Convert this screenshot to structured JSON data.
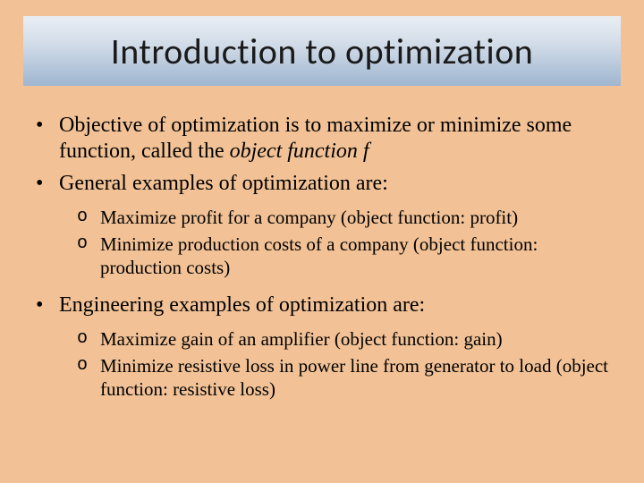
{
  "colors": {
    "background": "#f2c296",
    "title_gradient_top": "#e9eef4",
    "title_gradient_mid": "#d2dce8",
    "title_gradient_bottom": "#9fb6d0",
    "title_text": "#1a1a1a",
    "body_text": "#000000"
  },
  "typography": {
    "title_font": "Calibri",
    "title_size_pt": 30,
    "body_font": "Times New Roman",
    "bullet_lvl1_size_pt": 18,
    "bullet_lvl2_size_pt": 16
  },
  "title": "Introduction to optimization",
  "bullets": [
    {
      "text_before": "Objective of optimization is to maximize or minimize some function, called the ",
      "italic": "object function f",
      "text_after": ""
    },
    {
      "text_before": "General examples of optimization are:",
      "italic": "",
      "text_after": "",
      "sub": [
        "Maximize profit for a company (object function: profit)",
        "Minimize production costs of a company (object function: production costs)"
      ]
    },
    {
      "text_before": "Engineering examples of optimization are:",
      "italic": "",
      "text_after": "",
      "sub": [
        "Maximize gain of an amplifier (object function: gain)",
        "Minimize resistive loss in power line from generator to load (object function: resistive loss)"
      ]
    }
  ]
}
